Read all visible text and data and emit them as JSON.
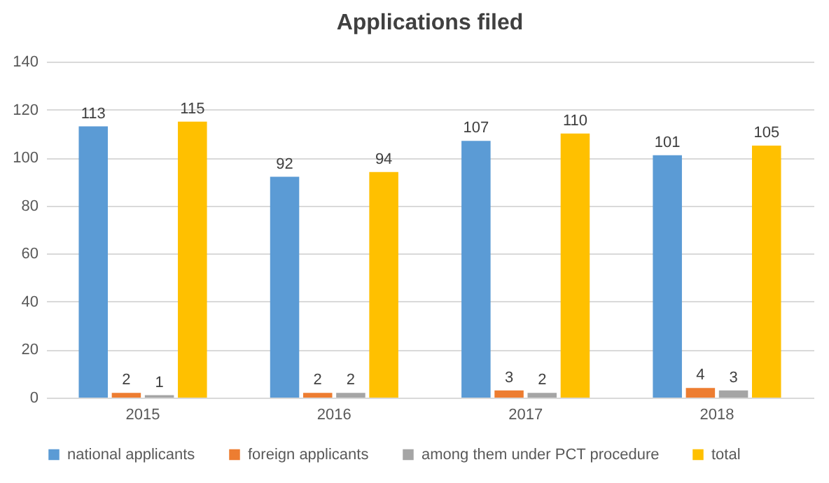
{
  "chart_data": {
    "type": "bar",
    "title": "Applications filed",
    "categories": [
      "2015",
      "2016",
      "2017",
      "2018"
    ],
    "series": [
      {
        "name": "national applicants",
        "color": "#5b9bd5",
        "values": [
          113,
          92,
          107,
          101
        ]
      },
      {
        "name": "foreign applicants",
        "color": "#ed7d31",
        "values": [
          2,
          2,
          3,
          4
        ]
      },
      {
        "name": "among them under PCT procedure",
        "color": "#a5a5a5",
        "values": [
          1,
          2,
          2,
          3
        ]
      },
      {
        "name": "total",
        "color": "#ffc000",
        "values": [
          115,
          94,
          110,
          105
        ]
      }
    ],
    "ylim": [
      0,
      140
    ],
    "yticks": [
      0,
      20,
      40,
      60,
      80,
      100,
      120,
      140
    ],
    "grid": "y",
    "legend": "bottom",
    "data_labels": true
  }
}
